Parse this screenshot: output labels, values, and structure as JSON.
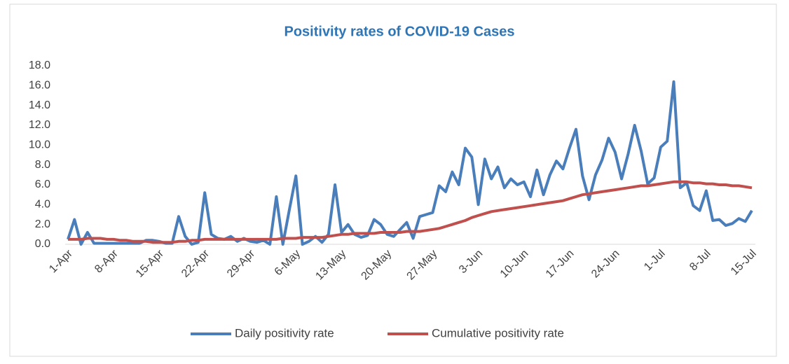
{
  "chart_data": {
    "type": "line",
    "title": "Positivity rates of COVID-19 Cases",
    "categories": [
      "1-Apr",
      null,
      null,
      null,
      null,
      null,
      null,
      "8-Apr",
      null,
      null,
      null,
      null,
      null,
      null,
      "15-Apr",
      null,
      null,
      null,
      null,
      null,
      null,
      "22-Apr",
      null,
      null,
      null,
      null,
      null,
      null,
      "29-Apr",
      null,
      null,
      null,
      null,
      null,
      null,
      "6-May",
      null,
      null,
      null,
      null,
      null,
      null,
      "13-May",
      null,
      null,
      null,
      null,
      null,
      null,
      "20-May",
      null,
      null,
      null,
      null,
      null,
      null,
      "27-May",
      null,
      null,
      null,
      null,
      null,
      null,
      "3-Jun",
      null,
      null,
      null,
      null,
      null,
      null,
      "10-Jun",
      null,
      null,
      null,
      null,
      null,
      null,
      "17-Jun",
      null,
      null,
      null,
      null,
      null,
      null,
      "24-Jun",
      null,
      null,
      null,
      null,
      null,
      null,
      "1-Jul",
      null,
      null,
      null,
      null,
      null,
      null,
      "8-Jul",
      null,
      null,
      null,
      null,
      null,
      null,
      "15-Jul"
    ],
    "series": [
      {
        "name": "Daily positivity rate",
        "color": "#4a7ebb",
        "values": [
          0.5,
          2.5,
          0.0,
          1.2,
          0.1,
          0.1,
          0.1,
          0.1,
          0.1,
          0.1,
          0.1,
          0.1,
          0.4,
          0.4,
          0.3,
          0.1,
          0.1,
          2.8,
          0.8,
          0.0,
          0.2,
          5.2,
          1.0,
          0.6,
          0.5,
          0.8,
          0.3,
          0.6,
          0.3,
          0.2,
          0.4,
          0.0,
          4.8,
          0.0,
          3.5,
          6.9,
          0.0,
          0.3,
          0.8,
          0.2,
          1.0,
          6.0,
          1.2,
          2.0,
          1.0,
          0.7,
          0.9,
          2.5,
          2.0,
          1.0,
          0.8,
          1.5,
          2.2,
          0.6,
          2.8,
          3.0,
          3.2,
          5.9,
          5.3,
          7.3,
          6.0,
          9.7,
          8.8,
          4.0,
          8.6,
          6.6,
          7.8,
          5.7,
          6.6,
          6.0,
          6.3,
          4.8,
          7.5,
          5.0,
          7.0,
          8.4,
          7.6,
          9.7,
          11.6,
          6.9,
          4.5,
          7.0,
          8.5,
          10.7,
          9.3,
          6.6,
          9.1,
          12.0,
          9.4,
          6.1,
          6.7,
          9.8,
          10.4,
          16.4,
          5.7,
          6.2,
          3.9,
          3.4,
          5.4,
          2.4,
          2.5,
          1.9,
          2.1,
          2.6,
          2.3,
          3.4
        ]
      },
      {
        "name": "Cumulative positivity rate",
        "color": "#c0504d",
        "values": [
          0.5,
          0.5,
          0.5,
          0.6,
          0.6,
          0.6,
          0.5,
          0.5,
          0.4,
          0.4,
          0.3,
          0.3,
          0.3,
          0.2,
          0.2,
          0.2,
          0.2,
          0.3,
          0.3,
          0.4,
          0.4,
          0.5,
          0.5,
          0.5,
          0.5,
          0.5,
          0.5,
          0.5,
          0.5,
          0.5,
          0.5,
          0.5,
          0.5,
          0.6,
          0.6,
          0.6,
          0.7,
          0.7,
          0.7,
          0.7,
          0.8,
          0.9,
          1.0,
          1.0,
          1.1,
          1.1,
          1.1,
          1.1,
          1.2,
          1.2,
          1.2,
          1.2,
          1.3,
          1.3,
          1.3,
          1.4,
          1.5,
          1.6,
          1.8,
          2.0,
          2.2,
          2.4,
          2.7,
          2.9,
          3.1,
          3.3,
          3.4,
          3.5,
          3.6,
          3.7,
          3.8,
          3.9,
          4.0,
          4.1,
          4.2,
          4.3,
          4.4,
          4.6,
          4.8,
          5.0,
          5.1,
          5.2,
          5.3,
          5.4,
          5.5,
          5.6,
          5.7,
          5.8,
          5.9,
          5.9,
          6.0,
          6.1,
          6.2,
          6.3,
          6.3,
          6.3,
          6.2,
          6.2,
          6.1,
          6.1,
          6.0,
          6.0,
          5.9,
          5.9,
          5.8,
          5.7
        ]
      }
    ],
    "ylim": [
      0,
      18
    ],
    "yticks": [
      {
        "value": 0,
        "label": "0.0"
      },
      {
        "value": 2,
        "label": "2.0"
      },
      {
        "value": 4,
        "label": "4.0"
      },
      {
        "value": 6,
        "label": "6.0"
      },
      {
        "value": 8,
        "label": "8.0"
      },
      {
        "value": 10,
        "label": "10.0"
      },
      {
        "value": 12,
        "label": "12.0"
      },
      {
        "value": 14,
        "label": "14.0"
      },
      {
        "value": 16,
        "label": "16.0"
      },
      {
        "value": 18,
        "label": "18.0"
      }
    ],
    "grid": false,
    "legend": "bottom"
  }
}
